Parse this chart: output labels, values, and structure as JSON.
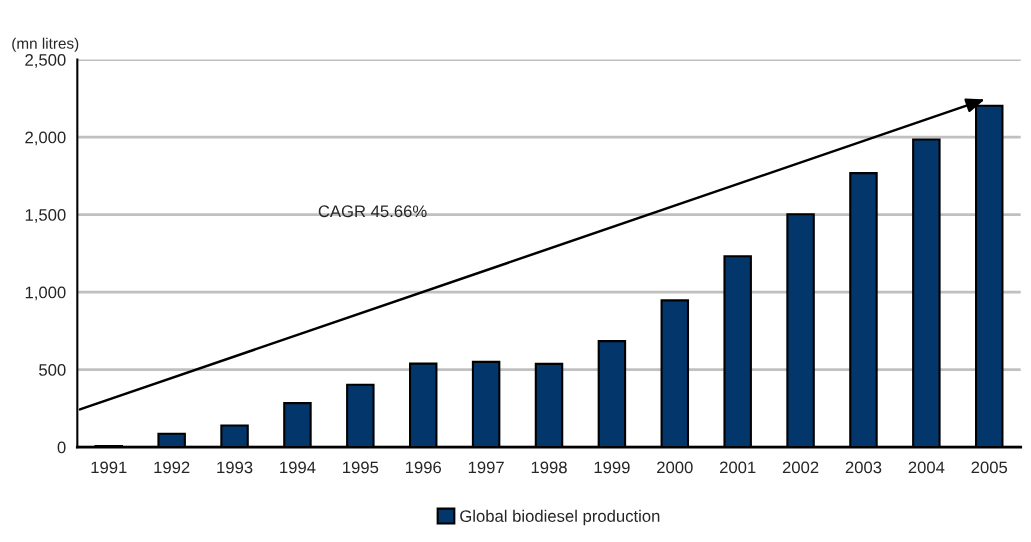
{
  "chart_data": {
    "type": "bar",
    "ylabel": "(mn litres)",
    "categories": [
      "1991",
      "1992",
      "1993",
      "1994",
      "1995",
      "1996",
      "1997",
      "1998",
      "1999",
      "2000",
      "2001",
      "2002",
      "2003",
      "2004",
      "2005"
    ],
    "series": [
      {
        "name": "Global biodiesel production",
        "color": "#03366a",
        "values": [
          7,
          86,
          140,
          284,
          403,
          539,
          550,
          537,
          684,
          947,
          1232,
          1502,
          1768,
          1985,
          2202
        ]
      }
    ],
    "ylim": [
      0,
      2500
    ],
    "yticks": [
      {
        "value": 0,
        "label": "0"
      },
      {
        "value": 500,
        "label": "500"
      },
      {
        "value": 1000,
        "label": "1,000"
      },
      {
        "value": 1500,
        "label": "1,500"
      },
      {
        "value": 2000,
        "label": "2,000"
      },
      {
        "value": 2500,
        "label": "2,500"
      }
    ],
    "grid": "y",
    "legend": "bottom",
    "annotations": [
      "CAGR 45.66%"
    ]
  }
}
